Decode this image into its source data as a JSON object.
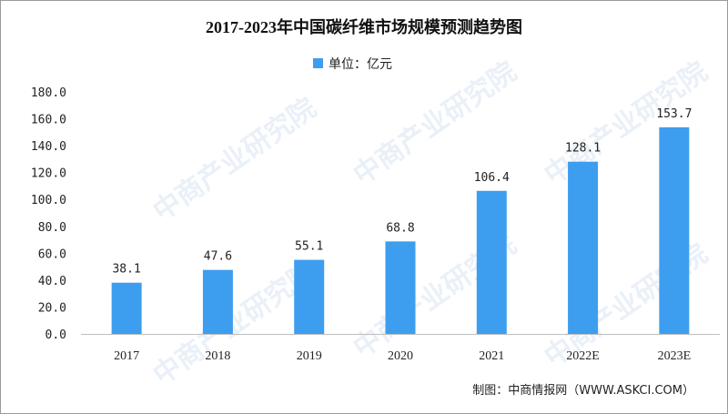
{
  "chart_data": {
    "type": "bar",
    "title": "2017-2023年中国碳纤维市场规模预测趋势图",
    "legend": {
      "label": "单位：亿元",
      "placement": "top-center"
    },
    "categories": [
      "2017",
      "2018",
      "2019",
      "2020",
      "2021",
      "2022E",
      "2023E"
    ],
    "values": [
      38.1,
      47.6,
      55.1,
      68.8,
      106.4,
      128.1,
      153.7
    ],
    "value_labels": [
      "38.1",
      "47.6",
      "55.1",
      "68.8",
      "106.4",
      "128.1",
      "153.7"
    ],
    "ylim": [
      0,
      180
    ],
    "y_ticks": [
      "0.0",
      "20.0",
      "40.0",
      "60.0",
      "80.0",
      "100.0",
      "120.0",
      "140.0",
      "160.0",
      "180.0"
    ],
    "xlabel": "",
    "ylabel": "",
    "grid": false,
    "colors": {
      "bar": "#3d9ef0",
      "text": "#222222",
      "axis": "#bfbfbf"
    }
  },
  "source": "制图：中商情报网（WWW.ASKCI.COM）",
  "watermark": "中商产业研究院"
}
